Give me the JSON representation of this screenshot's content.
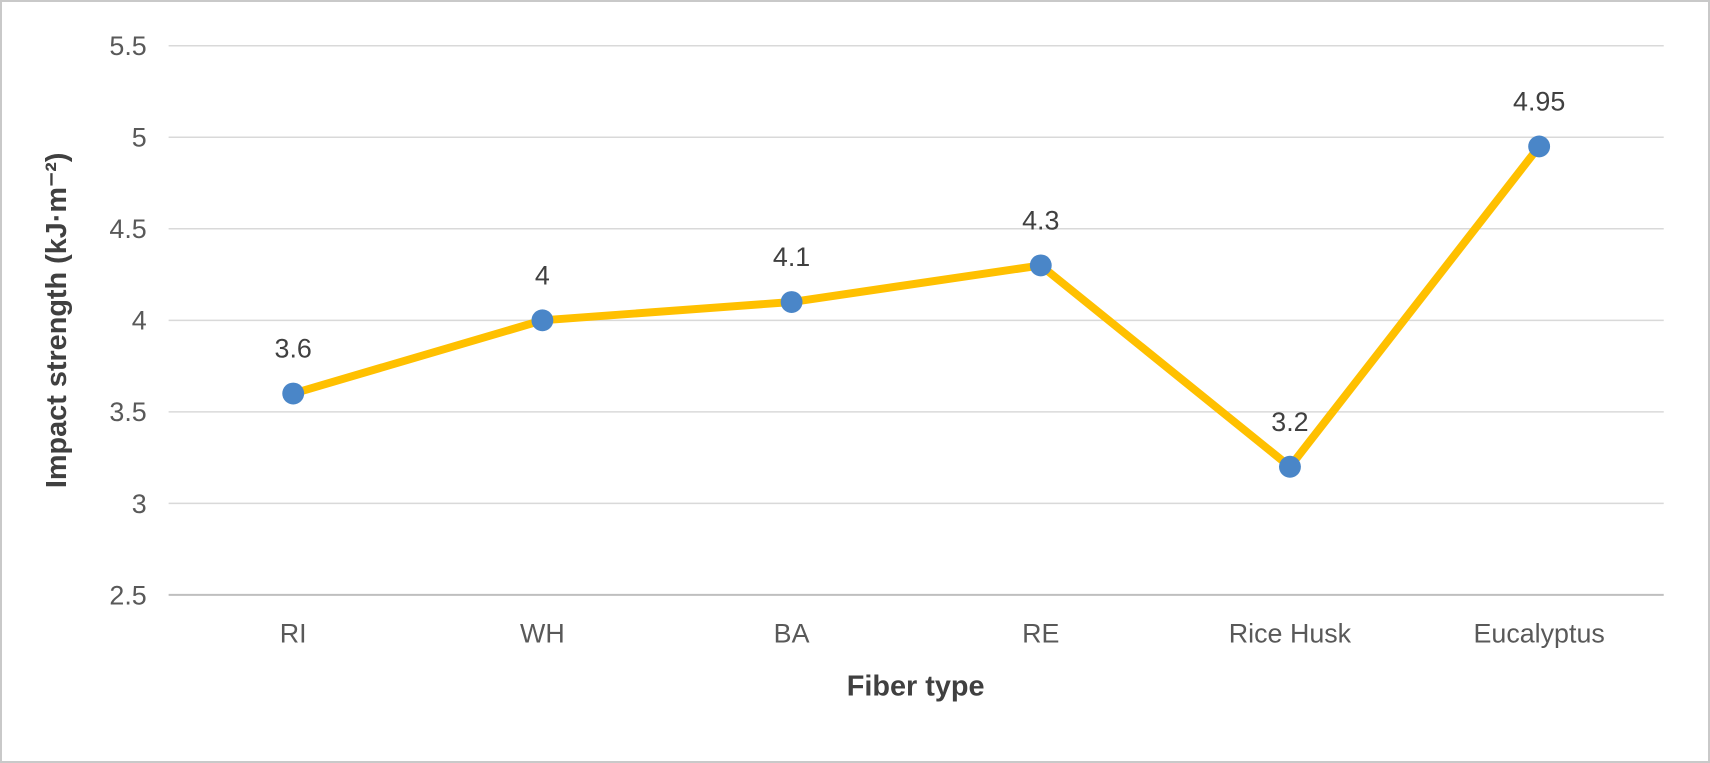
{
  "page": {
    "background": "#FFFFFF",
    "border_color": "#C9C9C9"
  },
  "chart_data": {
    "type": "line",
    "title": "",
    "xlabel": "Fiber type",
    "ylabel": "Impact strength (kJ·m⁻²)",
    "categories": [
      "RI",
      "WH",
      "BA",
      "RE",
      "Rice Husk",
      "Eucalyptus"
    ],
    "series": [
      {
        "name": "Impact strength",
        "values": [
          3.6,
          4,
          4.1,
          4.3,
          3.2,
          4.95
        ],
        "labels": [
          "3.6",
          "4",
          "4.1",
          "4.3",
          "3.2",
          "4.95"
        ],
        "line_color": "#FFC000",
        "marker_color": "#4A86C8"
      }
    ],
    "ylim": [
      2.5,
      5.5
    ],
    "ytick_step": 0.5,
    "ytick_labels": [
      "2.5",
      "3",
      "3.5",
      "4",
      "4.5",
      "5",
      "5.5"
    ],
    "grid": true,
    "legend": "none",
    "gridline_color": "#D9D9D9",
    "axis_line_color": "#BFBFBF",
    "tick_text_color": "#595959",
    "label_text_color": "#404040"
  }
}
